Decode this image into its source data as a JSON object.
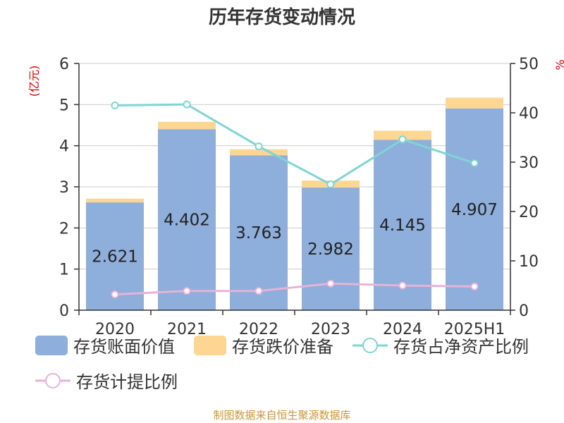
{
  "title": "历年存货变动情况",
  "source": "制图数据来自恒生聚源数据库",
  "colors": {
    "bar_book": "#8eaedb",
    "bar_reserve": "#fdd692",
    "line_net_assets": "#7fd4d4",
    "line_provision": "#e6b3d8",
    "axis_unit": "#cc0000"
  },
  "chart_data": {
    "type": "bar",
    "categories": [
      "2020",
      "2021",
      "2022",
      "2023",
      "2024",
      "2025H1"
    ],
    "y_left": {
      "label": "(亿元)",
      "range": [
        0,
        6
      ],
      "ticks": [
        0,
        1,
        2,
        3,
        4,
        5,
        6
      ]
    },
    "y_right": {
      "label": "%",
      "range": [
        0,
        50
      ],
      "ticks": [
        0,
        10,
        20,
        30,
        40,
        50
      ]
    },
    "grid": true,
    "legend_position": "bottom",
    "series": [
      {
        "name": "存货账面价值",
        "kind": "bar",
        "stack": "inv",
        "axis": "left",
        "values": [
          2.621,
          4.402,
          3.763,
          2.982,
          4.145,
          4.907
        ],
        "labels": [
          "2.621",
          "4.402",
          "3.763",
          "2.982",
          "4.145",
          "4.907"
        ]
      },
      {
        "name": "存货跌价准备",
        "kind": "bar",
        "stack": "inv",
        "axis": "left",
        "values": [
          0.09,
          0.18,
          0.15,
          0.17,
          0.22,
          0.26
        ]
      },
      {
        "name": "存货占净资产比例",
        "kind": "line",
        "axis": "right",
        "values": [
          41.5,
          41.7,
          33.2,
          25.5,
          34.6,
          29.8
        ]
      },
      {
        "name": "存货计提比例",
        "kind": "line",
        "axis": "right",
        "values": [
          3.2,
          3.9,
          3.9,
          5.4,
          5.0,
          4.8
        ]
      }
    ]
  }
}
